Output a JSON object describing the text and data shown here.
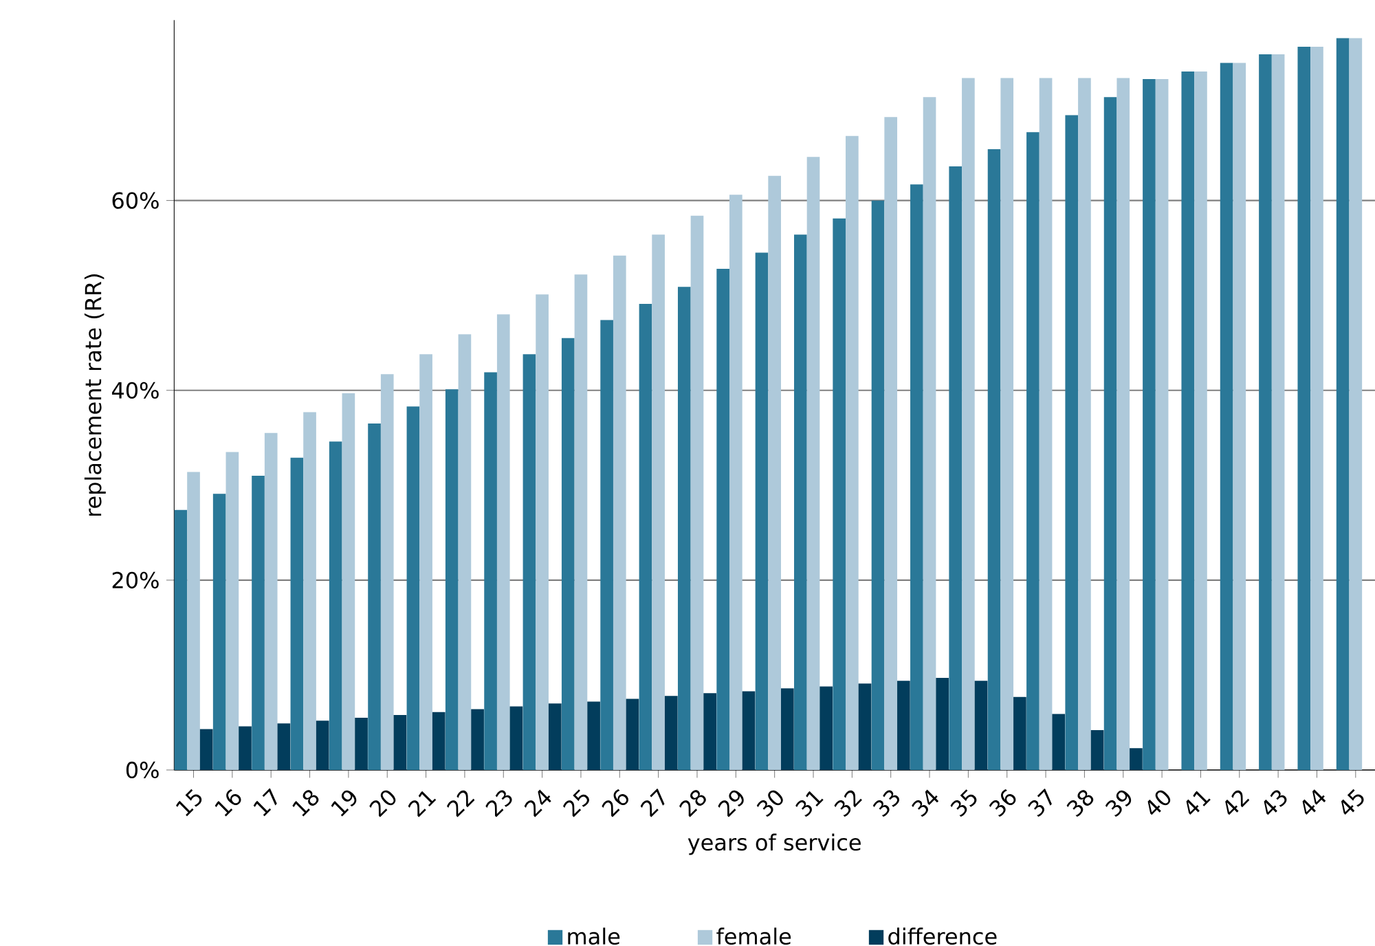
{
  "chart_data": {
    "type": "bar",
    "xlabel": "years of service",
    "ylabel": "replacement rate (RR)",
    "categories": [
      "15",
      "16",
      "17",
      "18",
      "19",
      "20",
      "21",
      "22",
      "23",
      "24",
      "25",
      "26",
      "27",
      "28",
      "29",
      "30",
      "31",
      "32",
      "33",
      "34",
      "35",
      "36",
      "37",
      "38",
      "39",
      "40",
      "41",
      "42",
      "43",
      "44",
      "45"
    ],
    "series": [
      {
        "name": "male",
        "color": "#2a7898",
        "values": [
          27.4,
          29.1,
          31.0,
          32.9,
          34.6,
          36.5,
          38.3,
          40.1,
          41.9,
          43.8,
          45.5,
          47.4,
          49.1,
          50.9,
          52.8,
          54.5,
          56.4,
          58.1,
          60.0,
          61.7,
          63.6,
          65.4,
          67.2,
          69.0,
          70.9,
          72.8,
          73.6,
          74.5,
          75.4,
          76.2,
          77.1
        ]
      },
      {
        "name": "female",
        "color": "#aec9da",
        "values": [
          31.4,
          33.5,
          35.5,
          37.7,
          39.7,
          41.7,
          43.8,
          45.9,
          48.0,
          50.1,
          52.2,
          54.2,
          56.4,
          58.4,
          60.6,
          62.6,
          64.6,
          66.8,
          68.8,
          70.9,
          72.9,
          72.9,
          72.9,
          72.9,
          72.9,
          72.8,
          73.6,
          74.5,
          75.4,
          76.2,
          77.1
        ]
      },
      {
        "name": "difference",
        "color": "#023d5c",
        "values": [
          4.3,
          4.6,
          4.9,
          5.2,
          5.5,
          5.8,
          6.1,
          6.4,
          6.7,
          7.0,
          7.2,
          7.5,
          7.8,
          8.1,
          8.3,
          8.6,
          8.8,
          9.1,
          9.4,
          9.7,
          9.4,
          7.7,
          5.9,
          4.2,
          2.3,
          null,
          null,
          null,
          null,
          null,
          null
        ]
      }
    ],
    "ylim": [
      0,
      79
    ],
    "yticks": [
      {
        "value": 0,
        "label": "0%"
      },
      {
        "value": 20,
        "label": "20%"
      },
      {
        "value": 40,
        "label": "40%"
      },
      {
        "value": 60,
        "label": "60%"
      }
    ],
    "grid": "y",
    "legend": "bottom"
  }
}
